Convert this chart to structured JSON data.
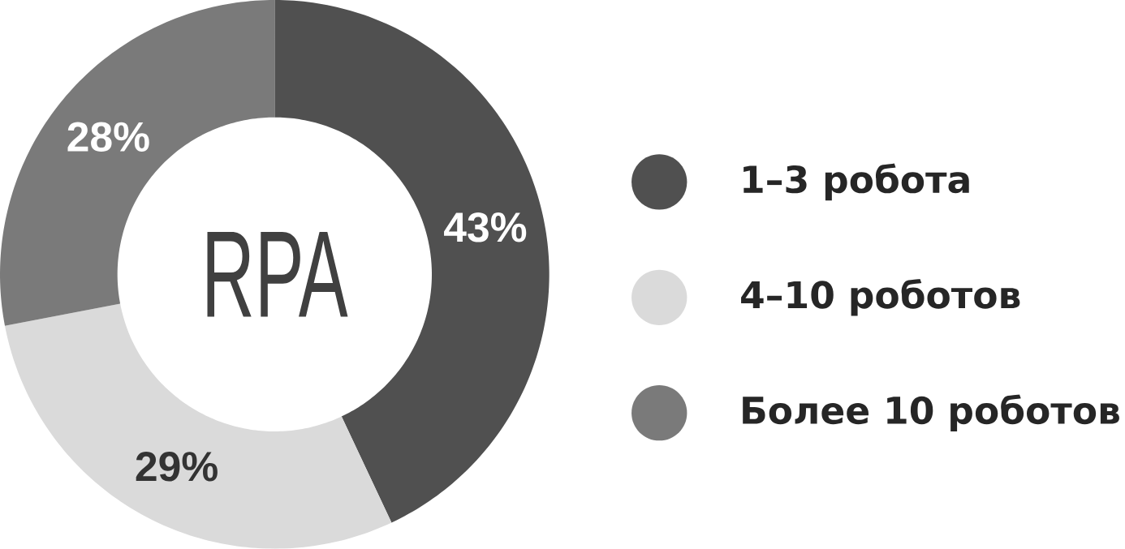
{
  "chart_data": {
    "type": "donut",
    "categories": [
      "1–3 робота",
      "4–10 роботов",
      "Более 10 роботов"
    ],
    "values": [
      43,
      29,
      28
    ],
    "colors": [
      "#505050",
      "#dadada",
      "#7a7a7a"
    ],
    "value_labels": [
      "43%",
      "29%",
      "28%"
    ],
    "legend": "right",
    "annotations": [
      "RPA"
    ]
  }
}
